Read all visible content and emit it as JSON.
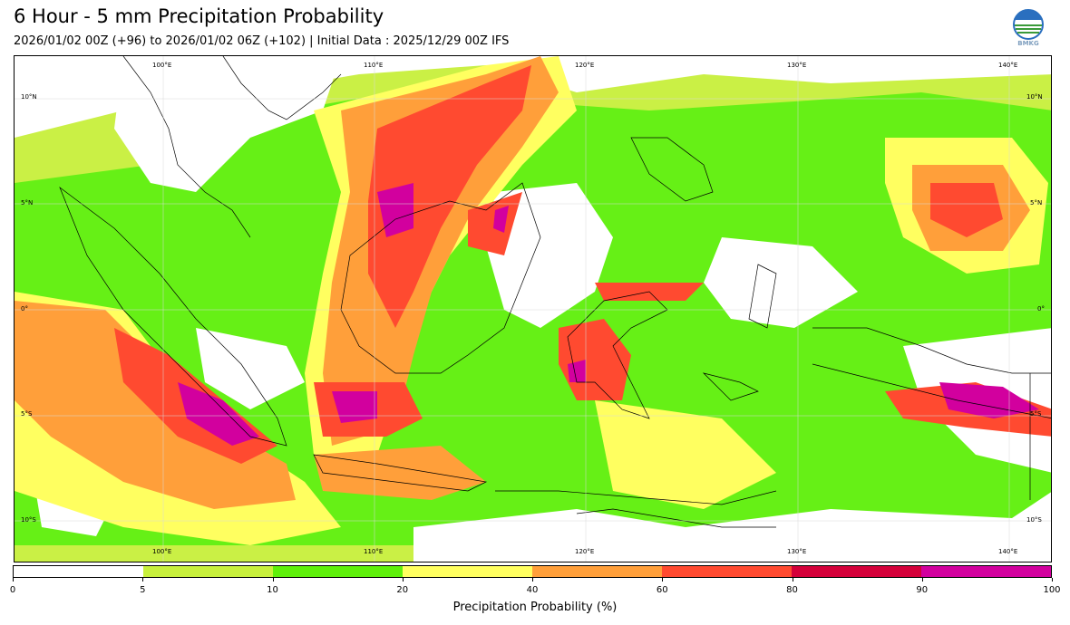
{
  "header": {
    "title": "6 Hour - 5 mm Precipitation Probability",
    "subtitle": "2026/01/02 00Z (+96) to 2026/01/02 06Z (+102) | Initial Data : 2025/12/29 00Z IFS",
    "logo_text": "BMKG"
  },
  "map": {
    "top_lon_labels": [
      "100°E",
      "110°E",
      "120°E",
      "130°E",
      "140°E"
    ],
    "bottom_lon_labels": [
      "100°E",
      "110°E",
      "120°E",
      "130°E",
      "140°E"
    ],
    "left_lat_labels": [
      "10°N",
      "5°N",
      "0°",
      "5°S",
      "10°S"
    ],
    "right_lat_labels": [
      "10°N",
      "5°N",
      "0°",
      "5°S",
      "10°S"
    ]
  },
  "colorbar": {
    "title": "Precipitation Probability (%)",
    "ticks": [
      "0",
      "5",
      "10",
      "20",
      "40",
      "60",
      "80",
      "90",
      "100"
    ],
    "colors": [
      "#ffffff",
      "#c8f03c",
      "#5ef00a",
      "#ffff60",
      "#ff9f3a",
      "#ff4a30",
      "#d4003a",
      "#d2009e"
    ]
  }
}
